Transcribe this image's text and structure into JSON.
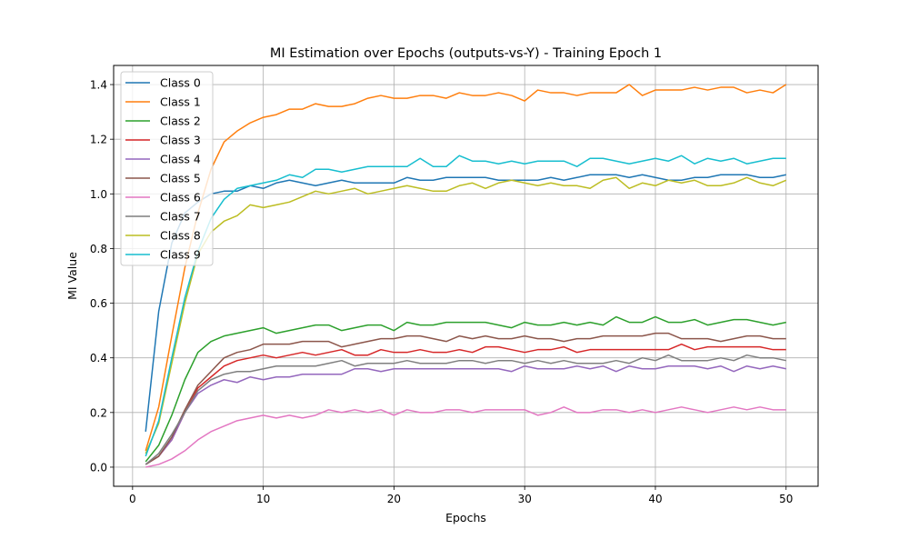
{
  "chart_data": {
    "type": "line",
    "title": "MI Estimation over Epochs (outputs-vs-Y) - Training Epoch 1",
    "xlabel": "Epochs",
    "ylabel": "MI Value",
    "xlim": [
      -1.45,
      52.45
    ],
    "ylim": [
      -0.07,
      1.47
    ],
    "x_ticks": [
      0,
      10,
      20,
      30,
      40,
      50
    ],
    "y_ticks": [
      0.0,
      0.2,
      0.4,
      0.6,
      0.8,
      1.0,
      1.2,
      1.4
    ],
    "x_tick_labels": [
      "0",
      "10",
      "20",
      "30",
      "40",
      "50"
    ],
    "y_tick_labels": [
      "0.0",
      "0.2",
      "0.4",
      "0.6",
      "0.8",
      "1.0",
      "1.2",
      "1.4"
    ],
    "grid": true,
    "legend_position": "top-left",
    "x": [
      1,
      2,
      3,
      4,
      5,
      6,
      7,
      8,
      9,
      10,
      11,
      12,
      13,
      14,
      15,
      16,
      17,
      18,
      19,
      20,
      21,
      22,
      23,
      24,
      25,
      26,
      27,
      28,
      29,
      30,
      31,
      32,
      33,
      34,
      35,
      36,
      37,
      38,
      39,
      40,
      41,
      42,
      43,
      44,
      45,
      46,
      47,
      48,
      49,
      50
    ],
    "series": [
      {
        "name": "Class 0",
        "color": "#1f77b4",
        "values": [
          0.13,
          0.57,
          0.82,
          0.93,
          0.97,
          1.0,
          1.01,
          1.01,
          1.03,
          1.02,
          1.04,
          1.05,
          1.04,
          1.03,
          1.04,
          1.05,
          1.04,
          1.04,
          1.04,
          1.04,
          1.06,
          1.05,
          1.05,
          1.06,
          1.06,
          1.06,
          1.06,
          1.05,
          1.05,
          1.05,
          1.05,
          1.06,
          1.05,
          1.06,
          1.07,
          1.07,
          1.07,
          1.06,
          1.07,
          1.06,
          1.05,
          1.05,
          1.06,
          1.06,
          1.07,
          1.07,
          1.07,
          1.06,
          1.06,
          1.07
        ]
      },
      {
        "name": "Class 1",
        "color": "#ff7f0e",
        "values": [
          0.06,
          0.22,
          0.48,
          0.73,
          0.93,
          1.09,
          1.19,
          1.23,
          1.26,
          1.28,
          1.29,
          1.31,
          1.31,
          1.33,
          1.32,
          1.32,
          1.33,
          1.35,
          1.36,
          1.35,
          1.35,
          1.36,
          1.36,
          1.35,
          1.37,
          1.36,
          1.36,
          1.37,
          1.36,
          1.34,
          1.38,
          1.37,
          1.37,
          1.36,
          1.37,
          1.37,
          1.37,
          1.4,
          1.36,
          1.38,
          1.38,
          1.38,
          1.39,
          1.38,
          1.39,
          1.39,
          1.37,
          1.38,
          1.37,
          1.4
        ]
      },
      {
        "name": "Class 2",
        "color": "#2ca02c",
        "values": [
          0.02,
          0.08,
          0.19,
          0.32,
          0.42,
          0.46,
          0.48,
          0.49,
          0.5,
          0.51,
          0.49,
          0.5,
          0.51,
          0.52,
          0.52,
          0.5,
          0.51,
          0.52,
          0.52,
          0.5,
          0.53,
          0.52,
          0.52,
          0.53,
          0.53,
          0.53,
          0.53,
          0.52,
          0.51,
          0.53,
          0.52,
          0.52,
          0.53,
          0.52,
          0.53,
          0.52,
          0.55,
          0.53,
          0.53,
          0.55,
          0.53,
          0.53,
          0.54,
          0.52,
          0.53,
          0.54,
          0.54,
          0.53,
          0.52,
          0.53
        ]
      },
      {
        "name": "Class 3",
        "color": "#d62728",
        "values": [
          0.01,
          0.04,
          0.1,
          0.2,
          0.29,
          0.33,
          0.37,
          0.39,
          0.4,
          0.41,
          0.4,
          0.41,
          0.42,
          0.41,
          0.42,
          0.43,
          0.41,
          0.41,
          0.43,
          0.42,
          0.42,
          0.43,
          0.42,
          0.42,
          0.43,
          0.42,
          0.44,
          0.44,
          0.43,
          0.42,
          0.43,
          0.43,
          0.44,
          0.42,
          0.43,
          0.43,
          0.43,
          0.43,
          0.43,
          0.43,
          0.43,
          0.45,
          0.43,
          0.44,
          0.44,
          0.44,
          0.44,
          0.44,
          0.43,
          0.43
        ]
      },
      {
        "name": "Class 4",
        "color": "#9467bd",
        "values": [
          0.01,
          0.04,
          0.1,
          0.2,
          0.27,
          0.3,
          0.32,
          0.31,
          0.33,
          0.32,
          0.33,
          0.33,
          0.34,
          0.34,
          0.34,
          0.34,
          0.36,
          0.36,
          0.35,
          0.36,
          0.36,
          0.36,
          0.36,
          0.36,
          0.36,
          0.36,
          0.36,
          0.36,
          0.35,
          0.37,
          0.36,
          0.36,
          0.36,
          0.37,
          0.36,
          0.37,
          0.35,
          0.37,
          0.36,
          0.36,
          0.37,
          0.37,
          0.37,
          0.36,
          0.37,
          0.35,
          0.37,
          0.36,
          0.37,
          0.36
        ]
      },
      {
        "name": "Class 5",
        "color": "#8c564b",
        "values": [
          0.01,
          0.04,
          0.11,
          0.21,
          0.3,
          0.35,
          0.4,
          0.42,
          0.43,
          0.45,
          0.45,
          0.45,
          0.46,
          0.46,
          0.46,
          0.44,
          0.45,
          0.46,
          0.47,
          0.47,
          0.48,
          0.48,
          0.47,
          0.46,
          0.48,
          0.47,
          0.48,
          0.47,
          0.47,
          0.48,
          0.47,
          0.47,
          0.46,
          0.47,
          0.47,
          0.48,
          0.48,
          0.48,
          0.48,
          0.49,
          0.49,
          0.47,
          0.47,
          0.47,
          0.46,
          0.47,
          0.48,
          0.48,
          0.47,
          0.47
        ]
      },
      {
        "name": "Class 6",
        "color": "#e377c2",
        "values": [
          0.0,
          0.01,
          0.03,
          0.06,
          0.1,
          0.13,
          0.15,
          0.17,
          0.18,
          0.19,
          0.18,
          0.19,
          0.18,
          0.19,
          0.21,
          0.2,
          0.21,
          0.2,
          0.21,
          0.19,
          0.21,
          0.2,
          0.2,
          0.21,
          0.21,
          0.2,
          0.21,
          0.21,
          0.21,
          0.21,
          0.19,
          0.2,
          0.22,
          0.2,
          0.2,
          0.21,
          0.21,
          0.2,
          0.21,
          0.2,
          0.21,
          0.22,
          0.21,
          0.2,
          0.21,
          0.22,
          0.21,
          0.22,
          0.21,
          0.21
        ]
      },
      {
        "name": "Class 7",
        "color": "#7f7f7f",
        "values": [
          0.01,
          0.05,
          0.12,
          0.2,
          0.28,
          0.32,
          0.34,
          0.35,
          0.35,
          0.36,
          0.37,
          0.37,
          0.37,
          0.37,
          0.38,
          0.39,
          0.37,
          0.38,
          0.38,
          0.38,
          0.39,
          0.38,
          0.38,
          0.38,
          0.39,
          0.39,
          0.38,
          0.39,
          0.39,
          0.38,
          0.39,
          0.38,
          0.39,
          0.38,
          0.38,
          0.38,
          0.39,
          0.38,
          0.4,
          0.39,
          0.41,
          0.39,
          0.39,
          0.39,
          0.4,
          0.39,
          0.41,
          0.4,
          0.4,
          0.39
        ]
      },
      {
        "name": "Class 8",
        "color": "#bcbd22",
        "values": [
          0.05,
          0.16,
          0.38,
          0.6,
          0.78,
          0.86,
          0.9,
          0.92,
          0.96,
          0.95,
          0.96,
          0.97,
          0.99,
          1.01,
          1.0,
          1.01,
          1.02,
          1.0,
          1.01,
          1.02,
          1.03,
          1.02,
          1.01,
          1.01,
          1.03,
          1.04,
          1.02,
          1.04,
          1.05,
          1.04,
          1.03,
          1.04,
          1.03,
          1.03,
          1.02,
          1.05,
          1.06,
          1.02,
          1.04,
          1.03,
          1.05,
          1.04,
          1.05,
          1.03,
          1.03,
          1.04,
          1.06,
          1.04,
          1.03,
          1.05
        ]
      },
      {
        "name": "Class 9",
        "color": "#17becf",
        "values": [
          0.04,
          0.17,
          0.4,
          0.62,
          0.79,
          0.91,
          0.98,
          1.02,
          1.03,
          1.04,
          1.05,
          1.07,
          1.06,
          1.09,
          1.09,
          1.08,
          1.09,
          1.1,
          1.1,
          1.1,
          1.1,
          1.13,
          1.1,
          1.1,
          1.14,
          1.12,
          1.12,
          1.11,
          1.12,
          1.11,
          1.12,
          1.12,
          1.12,
          1.1,
          1.13,
          1.13,
          1.12,
          1.11,
          1.12,
          1.13,
          1.12,
          1.14,
          1.11,
          1.13,
          1.12,
          1.13,
          1.11,
          1.12,
          1.13,
          1.13
        ]
      }
    ]
  }
}
